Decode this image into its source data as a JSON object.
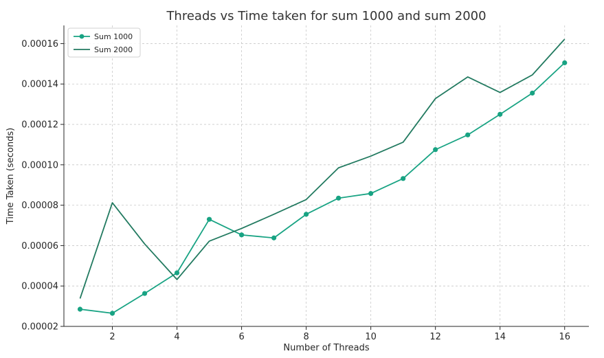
{
  "chart_data": {
    "type": "line",
    "title": "Threads vs Time taken for sum 1000 and sum 2000",
    "xlabel": "Number of Threads",
    "ylabel": "Time Taken (seconds)",
    "xlim": [
      0.5,
      16.75
    ],
    "ylim": [
      2e-05,
      0.000169
    ],
    "xticks": [
      2,
      4,
      6,
      8,
      10,
      12,
      14,
      16
    ],
    "xtick_labels": [
      "2",
      "4",
      "6",
      "8",
      "10",
      "12",
      "14",
      "16"
    ],
    "yticks": [
      2e-05,
      4e-05,
      6e-05,
      8e-05,
      0.0001,
      0.00012,
      0.00014,
      0.00016
    ],
    "ytick_labels": [
      "0.00002",
      "0.00004",
      "0.00006",
      "0.00008",
      "0.00010",
      "0.00012",
      "0.00014",
      "0.00016"
    ],
    "grid": true,
    "legend_position": "top-left",
    "x": [
      1,
      2,
      3,
      4,
      5,
      6,
      7,
      8,
      9,
      10,
      11,
      12,
      13,
      14,
      15,
      16
    ],
    "series": [
      {
        "name": "Sum 1000",
        "color": "#18a383",
        "markers": true,
        "values": [
          2.85e-05,
          2.65e-05,
          3.63e-05,
          4.65e-05,
          7.3e-05,
          6.53e-05,
          6.38e-05,
          7.55e-05,
          8.35e-05,
          8.58e-05,
          9.32e-05,
          0.0001075,
          0.0001148,
          0.000125,
          0.0001355,
          0.0001505
        ]
      },
      {
        "name": "Sum 2000",
        "color": "#227a60",
        "markers": false,
        "values": [
          3.38e-05,
          8.12e-05,
          6.08e-05,
          4.32e-05,
          6.22e-05,
          6.85e-05,
          7.55e-05,
          8.28e-05,
          9.85e-05,
          0.0001043,
          0.0001112,
          0.0001328,
          0.0001435,
          0.0001358,
          0.0001445,
          0.0001622
        ]
      }
    ]
  }
}
